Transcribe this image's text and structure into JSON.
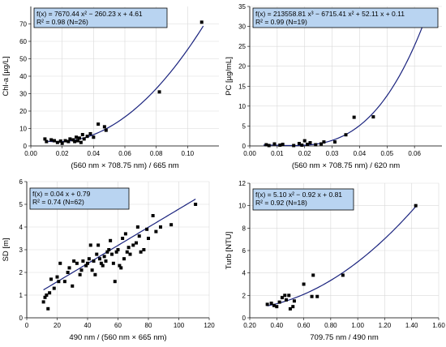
{
  "colors": {
    "grid": "#d9d9d9",
    "fit_line": "#1a237e",
    "points": "#000000",
    "equation_box": "#b9d4f1"
  },
  "chart_data": [
    {
      "type": "scatter",
      "title": "",
      "xlabel": "(560 nm × 708.75 nm) / 665 nm",
      "ylabel": "Chl-a [µg/L]",
      "xlim": [
        0,
        0.12
      ],
      "ylim": [
        0,
        80
      ],
      "xticks": [
        0,
        0.02,
        0.04,
        0.06,
        0.08,
        0.1
      ],
      "xtick_labels": [
        "0.00",
        "0.02",
        "0.04",
        "0.06",
        "0.08",
        "0.10"
      ],
      "yticks": [
        0,
        10,
        20,
        30,
        40,
        50,
        60,
        70
      ],
      "ytick_labels": [
        "0",
        "10",
        "20",
        "30",
        "40",
        "50",
        "60",
        "70"
      ],
      "grid": true,
      "equation_line1": "f(x) = 7670.44 x² − 260.23 x + 4.61",
      "equation_line2": "R² = 0.98   (N=26)",
      "fit": {
        "kind": "poly",
        "coeffs": [
          4.61,
          -260.23,
          7670.44
        ],
        "x_range": [
          0.01,
          0.11
        ]
      },
      "points": [
        [
          0.009,
          4.0
        ],
        [
          0.01,
          2.5
        ],
        [
          0.013,
          3.5
        ],
        [
          0.015,
          3.0
        ],
        [
          0.017,
          2.0
        ],
        [
          0.019,
          2.8
        ],
        [
          0.02,
          1.5
        ],
        [
          0.022,
          3.0
        ],
        [
          0.024,
          2.5
        ],
        [
          0.025,
          4.0
        ],
        [
          0.027,
          3.5
        ],
        [
          0.028,
          2.5
        ],
        [
          0.029,
          5.0
        ],
        [
          0.03,
          3.0
        ],
        [
          0.031,
          4.5
        ],
        [
          0.032,
          2.0
        ],
        [
          0.033,
          6.5
        ],
        [
          0.034,
          4.0
        ],
        [
          0.036,
          5.5
        ],
        [
          0.038,
          7.0
        ],
        [
          0.04,
          5.0
        ],
        [
          0.043,
          12.5
        ],
        [
          0.047,
          11.0
        ],
        [
          0.048,
          9.0
        ],
        [
          0.082,
          31.0
        ],
        [
          0.109,
          71.0
        ]
      ]
    },
    {
      "type": "scatter",
      "title": "",
      "xlabel": "(560 nm × 708.75 nm) / 620 nm",
      "ylabel": "PC [µg/mL]",
      "xlim": [
        0,
        0.07
      ],
      "ylim": [
        0,
        35
      ],
      "xticks": [
        0,
        0.01,
        0.02,
        0.03,
        0.04,
        0.05,
        0.06
      ],
      "xtick_labels": [
        "0.00",
        "0.01",
        "0.02",
        "0.03",
        "0.04",
        "0.05",
        "0.06"
      ],
      "yticks": [
        0,
        5,
        10,
        15,
        20,
        25,
        30,
        35
      ],
      "ytick_labels": [
        "0",
        "5",
        "10",
        "15",
        "20",
        "25",
        "30",
        "35"
      ],
      "grid": true,
      "equation_line1": "f(x) = 213558.81 x³ − 6715.41 x² + 52.11 x + 0.11",
      "equation_line2": "R² = 0.99   (N=19)",
      "fit": {
        "kind": "poly",
        "coeffs": [
          0.11,
          52.11,
          -6715.41,
          213558.81
        ],
        "x_range": [
          0.005,
          0.065
        ]
      },
      "points": [
        [
          0.006,
          0.3
        ],
        [
          0.007,
          0.1
        ],
        [
          0.009,
          0.5
        ],
        [
          0.011,
          0.2
        ],
        [
          0.012,
          0.4
        ],
        [
          0.016,
          0.1
        ],
        [
          0.018,
          0.6
        ],
        [
          0.019,
          0.2
        ],
        [
          0.02,
          1.3
        ],
        [
          0.021,
          0.4
        ],
        [
          0.022,
          0.8
        ],
        [
          0.024,
          0.3
        ],
        [
          0.026,
          0.5
        ],
        [
          0.027,
          1.0
        ],
        [
          0.031,
          1.0
        ],
        [
          0.035,
          2.8
        ],
        [
          0.038,
          7.2
        ],
        [
          0.045,
          7.3
        ],
        [
          0.064,
          33.0
        ]
      ]
    },
    {
      "type": "scatter",
      "title": "",
      "xlabel": "490 nm / (560 nm × 665 nm)",
      "ylabel": "SD [m]",
      "xlim": [
        0,
        120
      ],
      "ylim": [
        0,
        6
      ],
      "xticks": [
        0,
        20,
        40,
        60,
        80,
        100,
        120
      ],
      "xtick_labels": [
        "0",
        "20",
        "40",
        "60",
        "80",
        "100",
        "120"
      ],
      "yticks": [
        0,
        1,
        2,
        3,
        4,
        5,
        6
      ],
      "ytick_labels": [
        "0",
        "1",
        "2",
        "3",
        "4",
        "5",
        "6"
      ],
      "grid": true,
      "equation_line1": "f(x) = 0.04 x + 0.79",
      "equation_line2": "R² = 0.74   (N=62)",
      "fit": {
        "kind": "poly",
        "coeffs": [
          0.79,
          0.04
        ],
        "x_range": [
          11,
          111
        ]
      },
      "points": [
        [
          11,
          0.7
        ],
        [
          12,
          0.9
        ],
        [
          13,
          1.0
        ],
        [
          14,
          0.4
        ],
        [
          15,
          1.1
        ],
        [
          16,
          1.7
        ],
        [
          18,
          1.3
        ],
        [
          20,
          1.8
        ],
        [
          21,
          1.6
        ],
        [
          22,
          2.4
        ],
        [
          25,
          1.6
        ],
        [
          27,
          2.0
        ],
        [
          28,
          2.2
        ],
        [
          30,
          1.4
        ],
        [
          31,
          2.5
        ],
        [
          33,
          2.4
        ],
        [
          35,
          1.9
        ],
        [
          36,
          2.1
        ],
        [
          37,
          2.5
        ],
        [
          39,
          2.3
        ],
        [
          40,
          2.4
        ],
        [
          41,
          2.6
        ],
        [
          42,
          3.2
        ],
        [
          43,
          2.1
        ],
        [
          44,
          2.5
        ],
        [
          45,
          1.9
        ],
        [
          46,
          2.8
        ],
        [
          47,
          3.2
        ],
        [
          48,
          2.6
        ],
        [
          49,
          2.4
        ],
        [
          50,
          2.3
        ],
        [
          51,
          2.7
        ],
        [
          52,
          2.5
        ],
        [
          53,
          2.9
        ],
        [
          54,
          3.0
        ],
        [
          55,
          3.4
        ],
        [
          56,
          2.8
        ],
        [
          57,
          2.4
        ],
        [
          58,
          1.6
        ],
        [
          59,
          2.9
        ],
        [
          60,
          3.0
        ],
        [
          61,
          2.3
        ],
        [
          62,
          2.2
        ],
        [
          63,
          3.5
        ],
        [
          64,
          2.6
        ],
        [
          65,
          3.7
        ],
        [
          66,
          2.9
        ],
        [
          67,
          3.1
        ],
        [
          68,
          2.8
        ],
        [
          70,
          3.2
        ],
        [
          72,
          3.3
        ],
        [
          73,
          4.0
        ],
        [
          74,
          3.6
        ],
        [
          75,
          2.9
        ],
        [
          77,
          3.0
        ],
        [
          79,
          3.9
        ],
        [
          80,
          3.5
        ],
        [
          83,
          4.5
        ],
        [
          85,
          3.8
        ],
        [
          88,
          4.0
        ],
        [
          95,
          4.1
        ],
        [
          111,
          5.0
        ]
      ]
    },
    {
      "type": "scatter",
      "title": "",
      "xlabel": "709.75 nm / 490 nm",
      "ylabel": "Turb [NTU]",
      "xlim": [
        0.2,
        1.6
      ],
      "ylim": [
        0,
        12
      ],
      "xticks": [
        0.2,
        0.4,
        0.6,
        0.8,
        1.0,
        1.2,
        1.4,
        1.6
      ],
      "xtick_labels": [
        "0.20",
        "0.40",
        "0.60",
        "0.80",
        "1.00",
        "1.20",
        "1.40",
        "1.60"
      ],
      "yticks": [
        0,
        2,
        4,
        6,
        8,
        10,
        12
      ],
      "ytick_labels": [
        "0",
        "2",
        "4",
        "6",
        "8",
        "10",
        "12"
      ],
      "grid": true,
      "equation_line1": "f(x) = 5.10 x² − 0.92 x + 0.81",
      "equation_line2": "R² = 0.92   (N=18)",
      "fit": {
        "kind": "poly",
        "coeffs": [
          0.81,
          -0.92,
          5.1
        ],
        "x_range": [
          0.33,
          1.43
        ]
      },
      "points": [
        [
          0.33,
          1.2
        ],
        [
          0.36,
          1.3
        ],
        [
          0.38,
          1.1
        ],
        [
          0.4,
          1.0
        ],
        [
          0.42,
          1.4
        ],
        [
          0.44,
          1.8
        ],
        [
          0.46,
          2.0
        ],
        [
          0.47,
          1.6
        ],
        [
          0.49,
          2.0
        ],
        [
          0.5,
          0.8
        ],
        [
          0.52,
          1.0
        ],
        [
          0.53,
          1.5
        ],
        [
          0.6,
          3.0
        ],
        [
          0.66,
          1.9
        ],
        [
          0.67,
          3.8
        ],
        [
          0.7,
          1.9
        ],
        [
          0.89,
          3.8
        ],
        [
          1.43,
          10.0
        ]
      ]
    }
  ]
}
